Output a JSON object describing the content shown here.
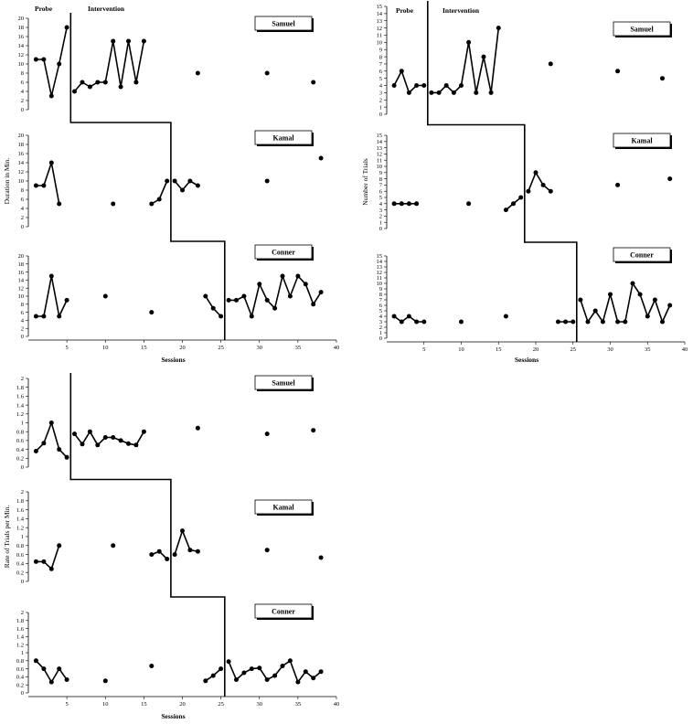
{
  "chart_data": [
    {
      "type": "line",
      "id": "duration",
      "ylabel": "Duration in Min.",
      "xlabel": "Sessions",
      "x_ticks": [
        5,
        10,
        15,
        20,
        25,
        30,
        35,
        40
      ],
      "xlim": [
        0,
        40
      ],
      "phase_labels": [
        "Probe",
        "Intervention"
      ],
      "panels": [
        {
          "name": "Samuel",
          "ylim": [
            0,
            20
          ],
          "y_ticks": [
            0,
            2,
            4,
            6,
            8,
            10,
            12,
            14,
            16,
            18,
            20
          ],
          "phase_change_after": 5.5,
          "segments": [
            [
              [
                1,
                11
              ],
              [
                2,
                11
              ],
              [
                3,
                3
              ],
              [
                4,
                10
              ],
              [
                5,
                18
              ]
            ],
            [
              [
                6,
                4
              ],
              [
                7,
                6
              ],
              [
                8,
                5
              ],
              [
                9,
                6
              ],
              [
                10,
                6
              ],
              [
                11,
                15
              ],
              [
                12,
                5
              ],
              [
                13,
                15
              ],
              [
                14,
                6
              ],
              [
                15,
                15
              ]
            ],
            [
              [
                22,
                8
              ]
            ],
            [
              [
                31,
                8
              ]
            ],
            [
              [
                37,
                6
              ]
            ]
          ]
        },
        {
          "name": "Kamal",
          "ylim": [
            0,
            20
          ],
          "y_ticks": [
            0,
            2,
            4,
            6,
            8,
            10,
            12,
            14,
            16,
            18,
            20
          ],
          "phase_change_after": 18.5,
          "segments": [
            [
              [
                1,
                9
              ],
              [
                2,
                9
              ],
              [
                3,
                14
              ],
              [
                4,
                5
              ]
            ],
            [
              [
                11,
                5
              ]
            ],
            [
              [
                16,
                5
              ],
              [
                17,
                6
              ],
              [
                18,
                10
              ]
            ],
            [
              [
                19,
                10
              ],
              [
                20,
                8
              ],
              [
                21,
                10
              ],
              [
                22,
                9
              ]
            ],
            [
              [
                31,
                10
              ]
            ],
            [
              [
                38,
                15
              ]
            ]
          ]
        },
        {
          "name": "Conner",
          "ylim": [
            0,
            20
          ],
          "y_ticks": [
            0,
            2,
            4,
            6,
            8,
            10,
            12,
            14,
            16,
            18,
            20
          ],
          "phase_change_after": 25.5,
          "segments": [
            [
              [
                1,
                5
              ],
              [
                2,
                5
              ],
              [
                3,
                15
              ],
              [
                4,
                5
              ],
              [
                5,
                9
              ]
            ],
            [
              [
                10,
                10
              ]
            ],
            [
              [
                16,
                6
              ]
            ],
            [
              [
                23,
                10
              ],
              [
                24,
                7
              ],
              [
                25,
                5
              ]
            ],
            [
              [
                26,
                9
              ],
              [
                27,
                9
              ],
              [
                28,
                10
              ],
              [
                29,
                5
              ],
              [
                30,
                13
              ],
              [
                31,
                9
              ],
              [
                32,
                7
              ],
              [
                33,
                15
              ],
              [
                34,
                10
              ],
              [
                35,
                15
              ],
              [
                36,
                13
              ],
              [
                37,
                8
              ],
              [
                38,
                11
              ]
            ]
          ]
        }
      ]
    },
    {
      "type": "line",
      "id": "trials",
      "ylabel": "Number of Trials",
      "xlabel": "Sessions",
      "x_ticks": [
        5,
        10,
        15,
        20,
        25,
        30,
        35,
        40
      ],
      "xlim": [
        0,
        40
      ],
      "phase_labels": [
        "Probe",
        "Intervention"
      ],
      "panels": [
        {
          "name": "Samuel",
          "ylim": [
            0,
            15
          ],
          "y_ticks": [
            0,
            1,
            2,
            3,
            4,
            5,
            6,
            7,
            8,
            9,
            10,
            11,
            12,
            13,
            14,
            15
          ],
          "phase_change_after": 5.5,
          "segments": [
            [
              [
                1,
                4
              ],
              [
                2,
                6
              ],
              [
                3,
                3
              ],
              [
                4,
                4
              ],
              [
                5,
                4
              ]
            ],
            [
              [
                6,
                3
              ],
              [
                7,
                3
              ],
              [
                8,
                4
              ],
              [
                9,
                3
              ],
              [
                10,
                4
              ],
              [
                11,
                10
              ],
              [
                12,
                3
              ],
              [
                13,
                8
              ],
              [
                14,
                3
              ],
              [
                15,
                12
              ]
            ],
            [
              [
                22,
                7
              ]
            ],
            [
              [
                31,
                6
              ]
            ],
            [
              [
                37,
                5
              ]
            ]
          ]
        },
        {
          "name": "Kamal",
          "ylim": [
            0,
            15
          ],
          "y_ticks": [
            0,
            1,
            2,
            3,
            4,
            5,
            6,
            7,
            8,
            9,
            10,
            11,
            12,
            13,
            14,
            15
          ],
          "phase_change_after": 18.5,
          "segments": [
            [
              [
                1,
                4
              ],
              [
                2,
                4
              ],
              [
                3,
                4
              ],
              [
                4,
                4
              ]
            ],
            [
              [
                11,
                4
              ]
            ],
            [
              [
                16,
                3
              ],
              [
                17,
                4
              ],
              [
                18,
                5
              ]
            ],
            [
              [
                19,
                6
              ],
              [
                20,
                9
              ],
              [
                21,
                7
              ],
              [
                22,
                6
              ]
            ],
            [
              [
                31,
                7
              ]
            ],
            [
              [
                38,
                8
              ]
            ]
          ]
        },
        {
          "name": "Conner",
          "ylim": [
            0,
            15
          ],
          "y_ticks": [
            0,
            1,
            2,
            3,
            4,
            5,
            6,
            7,
            8,
            9,
            10,
            11,
            12,
            13,
            14,
            15
          ],
          "phase_change_after": 25.5,
          "segments": [
            [
              [
                1,
                4
              ],
              [
                2,
                3
              ],
              [
                3,
                4
              ],
              [
                4,
                3
              ],
              [
                5,
                3
              ]
            ],
            [
              [
                10,
                3
              ]
            ],
            [
              [
                16,
                4
              ]
            ],
            [
              [
                23,
                3
              ],
              [
                24,
                3
              ],
              [
                25,
                3
              ]
            ],
            [
              [
                26,
                7
              ],
              [
                27,
                3
              ],
              [
                28,
                5
              ],
              [
                29,
                3
              ],
              [
                30,
                8
              ],
              [
                31,
                3
              ],
              [
                32,
                3
              ],
              [
                33,
                10
              ],
              [
                34,
                8
              ],
              [
                35,
                4
              ],
              [
                36,
                7
              ],
              [
                37,
                3
              ],
              [
                38,
                6
              ]
            ]
          ]
        }
      ]
    },
    {
      "type": "line",
      "id": "rate",
      "ylabel": "Rate of Trials per Min.",
      "xlabel": "Sessions",
      "x_ticks": [
        5,
        10,
        15,
        20,
        25,
        30,
        35,
        40
      ],
      "xlim": [
        0,
        40
      ],
      "phase_labels": [],
      "panels": [
        {
          "name": "Samuel",
          "ylim": [
            0,
            2
          ],
          "y_ticks": [
            0,
            0.2,
            0.4,
            0.6,
            0.8,
            1,
            1.2,
            1.4,
            1.6,
            1.8,
            2
          ],
          "phase_change_after": 5.5,
          "segments": [
            [
              [
                1,
                0.36
              ],
              [
                2,
                0.54
              ],
              [
                3,
                1.0
              ],
              [
                4,
                0.4
              ],
              [
                5,
                0.22
              ]
            ],
            [
              [
                6,
                0.75
              ],
              [
                7,
                0.52
              ],
              [
                8,
                0.8
              ],
              [
                9,
                0.5
              ],
              [
                10,
                0.67
              ],
              [
                11,
                0.67
              ],
              [
                12,
                0.6
              ],
              [
                13,
                0.53
              ],
              [
                14,
                0.5
              ],
              [
                15,
                0.8
              ]
            ],
            [
              [
                22,
                0.88
              ]
            ],
            [
              [
                31,
                0.75
              ]
            ],
            [
              [
                37,
                0.83
              ]
            ]
          ]
        },
        {
          "name": "Kamal",
          "ylim": [
            0,
            2
          ],
          "y_ticks": [
            0,
            0.2,
            0.4,
            0.6,
            0.8,
            1,
            1.2,
            1.4,
            1.6,
            1.8,
            2
          ],
          "phase_change_after": 18.5,
          "segments": [
            [
              [
                1,
                0.44
              ],
              [
                2,
                0.44
              ],
              [
                3,
                0.28
              ],
              [
                4,
                0.8
              ]
            ],
            [
              [
                11,
                0.8
              ]
            ],
            [
              [
                16,
                0.6
              ],
              [
                17,
                0.67
              ],
              [
                18,
                0.5
              ]
            ],
            [
              [
                19,
                0.6
              ],
              [
                20,
                1.13
              ],
              [
                21,
                0.7
              ],
              [
                22,
                0.67
              ]
            ],
            [
              [
                31,
                0.7
              ]
            ],
            [
              [
                38,
                0.53
              ]
            ]
          ]
        },
        {
          "name": "Conner",
          "ylim": [
            0,
            2
          ],
          "y_ticks": [
            0,
            0.2,
            0.4,
            0.6,
            0.8,
            1,
            1.2,
            1.4,
            1.6,
            1.8,
            2
          ],
          "phase_change_after": 25.5,
          "segments": [
            [
              [
                1,
                0.8
              ],
              [
                2,
                0.6
              ],
              [
                3,
                0.27
              ],
              [
                4,
                0.6
              ],
              [
                5,
                0.33
              ]
            ],
            [
              [
                10,
                0.3
              ]
            ],
            [
              [
                16,
                0.67
              ]
            ],
            [
              [
                23,
                0.3
              ],
              [
                24,
                0.43
              ],
              [
                25,
                0.6
              ]
            ],
            [
              [
                26,
                0.78
              ],
              [
                27,
                0.33
              ],
              [
                28,
                0.5
              ],
              [
                29,
                0.6
              ],
              [
                30,
                0.62
              ],
              [
                31,
                0.33
              ],
              [
                32,
                0.43
              ],
              [
                33,
                0.67
              ],
              [
                34,
                0.8
              ],
              [
                35,
                0.27
              ],
              [
                36,
                0.53
              ],
              [
                37,
                0.37
              ],
              [
                38,
                0.53
              ]
            ]
          ]
        }
      ]
    }
  ]
}
